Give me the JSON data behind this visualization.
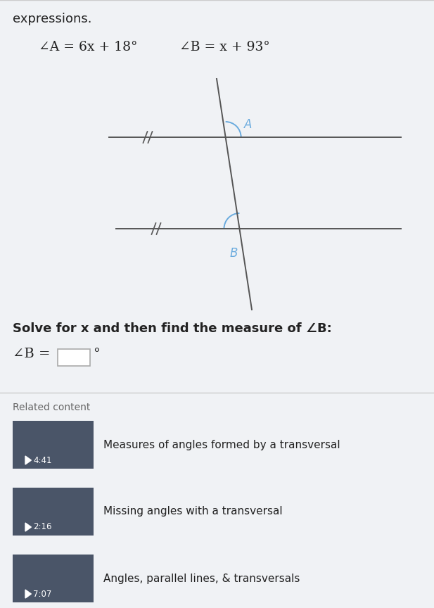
{
  "background_color": "#f0f2f5",
  "title_text": "expressions.",
  "angle_a_label": "∠A = 6x + 18°",
  "angle_b_label": "∠B = x + 93°",
  "solve_text": "Solve for x and then find the measure of ∠B:",
  "answer_label": "∠B =",
  "line_color": "#555555",
  "angle_arc_color": "#6aabde",
  "angle_label_color": "#6aabde",
  "related_content_label": "Related content",
  "video1_title": "Measures of angles formed by a transversal",
  "video1_time": "4:41",
  "video2_title": "Missing angles with a transversal",
  "video2_time": "2:16",
  "video3_title": "Angles, parallel lines, & transversals",
  "video3_time": "7:07",
  "video_thumb_color": "#4a5568",
  "video_thumb_play_color": "#ffffff",
  "answer_box_color": "#ffffff",
  "answer_box_border": "#aaaaaa",
  "divider_color": "#cccccc",
  "text_color": "#222222",
  "label_color": "#666666"
}
